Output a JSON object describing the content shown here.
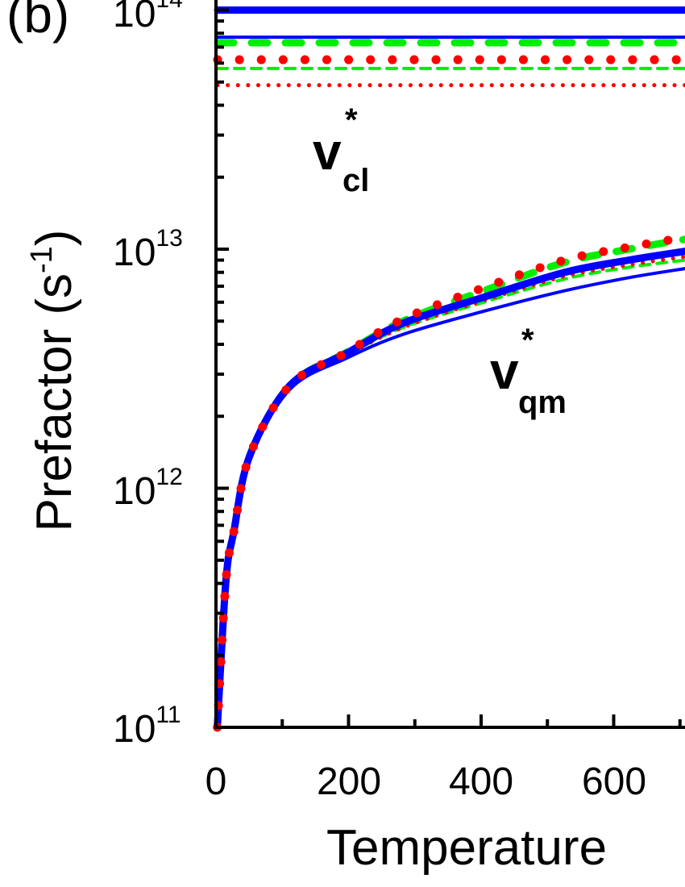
{
  "chart_data": {
    "type": "line",
    "panel_label": "(b)",
    "xlabel": "Temperature",
    "ylabel": "Prefactor (s",
    "ylabel_sup": "-1",
    "ylabel_close": ")",
    "y_scale": "log",
    "xlim": [
      0,
      708
    ],
    "ylim": [
      100000000000.0,
      100000000000000.0
    ],
    "x_ticks": [
      0,
      200,
      400,
      600
    ],
    "x_tick_labels": [
      "0",
      "200",
      "400",
      "600"
    ],
    "y_tick_labels": [
      {
        "base": "10",
        "exp": "11"
      },
      {
        "base": "10",
        "exp": "12"
      },
      {
        "base": "10",
        "exp": "13"
      },
      {
        "base": "10",
        "exp": "14"
      }
    ],
    "grid": false,
    "annotations": {
      "classical": {
        "symbol": "v",
        "sup": "*",
        "sub": "cl"
      },
      "quantum": {
        "symbol": "v",
        "sup": "*",
        "sub": "qm"
      }
    },
    "x": [
      2,
      15,
      27,
      51,
      112,
      197,
      282,
      404,
      526,
      623,
      708
    ],
    "series": [
      {
        "group": "classical",
        "color": "#0000ff",
        "style": "solid-thick",
        "constant": 100000000000000.0
      },
      {
        "group": "classical",
        "color": "#0000ff",
        "style": "solid-thin",
        "constant": 77000000000000.0
      },
      {
        "group": "classical",
        "color": "#00ee00",
        "style": "dash-thick",
        "constant": 73000000000000.0
      },
      {
        "group": "classical",
        "color": "#ff0000",
        "style": "dot-thick",
        "constant": 62000000000000.0
      },
      {
        "group": "classical",
        "color": "#00ee00",
        "style": "dash-thin",
        "constant": 57000000000000.0
      },
      {
        "group": "classical",
        "color": "#ff0000",
        "style": "dot-thin",
        "constant": 48500000000000.0
      },
      {
        "group": "quantum",
        "color": "#0000ff",
        "style": "solid-thin",
        "values": [
          100000000000.0,
          400000000000.0,
          650000000000.0,
          1330000000000.0,
          2600000000000.0,
          3500000000000.0,
          4400000000000.0,
          5500000000000.0,
          6700000000000.0,
          7600000000000.0,
          8300000000000.0
        ]
      },
      {
        "group": "quantum",
        "color": "#00ee00",
        "style": "dash-thin",
        "values": [
          100000000000.0,
          400000000000.0,
          650000000000.0,
          1350000000000.0,
          2650000000000.0,
          3600000000000.0,
          4700000000000.0,
          6000000000000.0,
          7500000000000.0,
          8400000000000.0,
          9000000000000.0
        ]
      },
      {
        "group": "quantum",
        "color": "#ff0000",
        "style": "dot-thin",
        "values": [
          100000000000.0,
          400000000000.0,
          650000000000.0,
          1350000000000.0,
          2650000000000.0,
          3600000000000.0,
          4700000000000.0,
          6100000000000.0,
          7700000000000.0,
          8600000000000.0,
          9300000000000.0
        ]
      },
      {
        "group": "quantum",
        "color": "#00ee00",
        "style": "dash-thick",
        "values": [
          100000000000.0,
          410000000000.0,
          660000000000.0,
          1370000000000.0,
          2700000000000.0,
          3700000000000.0,
          5000000000000.0,
          6700000000000.0,
          8800000000000.0,
          10000000000000.0,
          11000000000000.0
        ]
      },
      {
        "group": "quantum",
        "color": "#0000ff",
        "style": "solid-thick",
        "values": [
          100000000000.0,
          410000000000.0,
          660000000000.0,
          1370000000000.0,
          2700000000000.0,
          3670000000000.0,
          4900000000000.0,
          6300000000000.0,
          8000000000000.0,
          9000000000000.0,
          9800000000000.0
        ]
      },
      {
        "group": "quantum",
        "color": "#ff0000",
        "style": "dot-thick",
        "values": [
          100000000000.0,
          410000000000.0,
          660000000000.0,
          1370000000000.0,
          2700000000000.0,
          3700000000000.0,
          5100000000000.0,
          6900000000000.0,
          9000000000000.0,
          10200000000000.0,
          11200000000000.0
        ]
      }
    ]
  }
}
